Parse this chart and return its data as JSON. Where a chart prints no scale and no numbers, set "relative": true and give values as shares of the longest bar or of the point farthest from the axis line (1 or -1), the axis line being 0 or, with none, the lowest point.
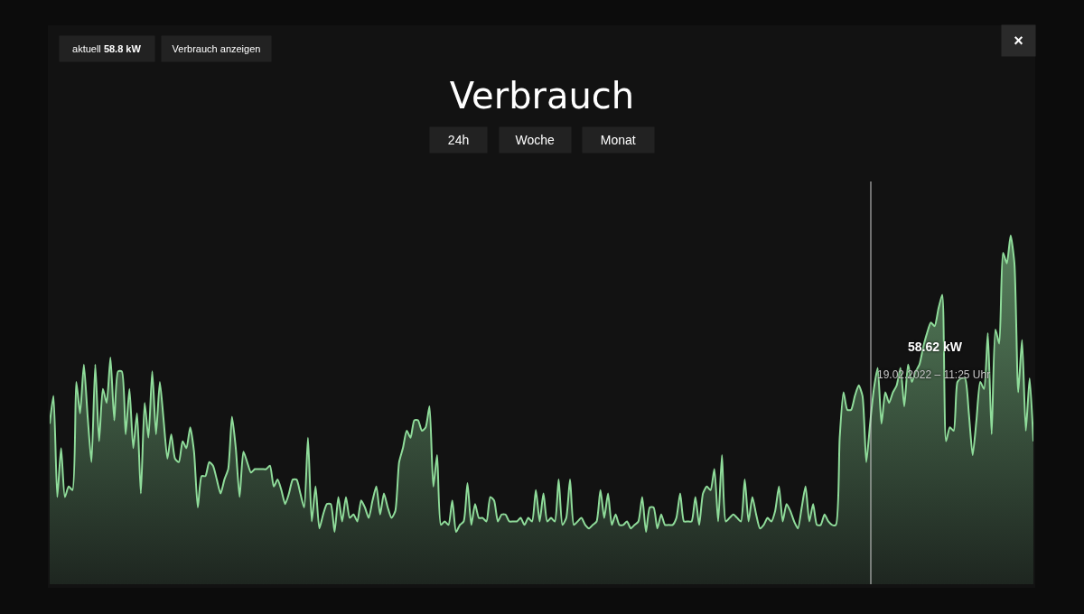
{
  "chart_data": {
    "type": "area",
    "title": "Verbrauch",
    "relative": true,
    "color": "#8fdc9a",
    "categories": [
      null,
      null,
      null,
      null,
      null,
      null,
      null,
      null,
      null,
      null,
      null,
      null,
      null,
      null,
      null,
      null,
      null,
      null,
      null,
      null,
      null,
      null,
      null,
      null,
      null,
      null,
      null,
      null,
      null,
      null,
      null,
      null,
      null,
      null,
      null,
      null,
      null,
      null,
      null,
      null,
      null,
      null,
      null,
      null,
      null,
      null,
      null,
      null,
      null,
      null,
      null,
      null,
      null,
      null,
      null,
      null,
      null,
      null,
      null,
      null,
      null,
      null,
      null,
      null,
      null,
      null,
      null,
      null,
      null,
      null,
      null,
      null,
      null,
      null,
      null,
      null,
      null,
      null,
      null,
      null,
      null,
      null,
      null,
      null,
      null,
      null,
      null,
      null,
      null,
      null,
      null,
      null,
      null,
      null,
      null,
      null,
      null,
      null,
      null,
      null,
      null,
      null,
      null,
      null,
      null,
      null,
      null,
      null,
      null,
      null,
      null,
      null,
      null,
      null,
      null,
      null,
      null,
      null,
      null,
      null,
      null,
      null,
      null,
      null,
      null,
      null,
      null,
      null,
      null,
      null,
      null,
      null,
      null,
      null,
      null,
      null,
      null,
      null,
      null,
      null,
      null,
      null,
      null,
      null,
      null,
      null,
      null,
      null,
      null,
      null,
      null,
      null,
      null,
      null,
      null,
      null,
      null,
      null,
      null,
      null,
      null,
      null,
      null,
      null,
      null,
      null,
      null,
      null,
      null,
      null,
      null,
      null,
      null,
      null,
      null,
      null,
      null,
      null,
      null,
      null,
      null,
      null,
      null,
      null,
      null,
      null,
      null,
      null,
      null,
      null,
      null,
      null,
      null,
      null,
      null,
      null,
      null,
      null,
      null,
      null,
      null,
      null,
      null,
      null,
      null,
      null,
      null,
      null,
      null,
      null,
      null,
      null,
      null,
      null,
      null,
      null,
      null,
      null,
      null,
      null,
      null,
      null,
      null,
      null,
      null,
      null,
      null,
      null,
      null,
      null,
      null,
      null,
      null,
      null,
      null,
      null,
      null,
      null,
      null,
      null,
      null,
      null,
      null,
      null,
      null,
      null,
      null,
      null,
      null,
      null,
      null,
      null,
      null,
      null,
      null,
      null,
      null,
      null,
      null,
      null
    ],
    "values": [
      0.46,
      0.54,
      0.25,
      0.39,
      0.25,
      0.28,
      0.27,
      0.58,
      0.49,
      0.63,
      0.48,
      0.35,
      0.63,
      0.41,
      0.56,
      0.52,
      0.65,
      0.47,
      0.61,
      0.61,
      0.43,
      0.56,
      0.39,
      0.49,
      0.26,
      0.52,
      0.42,
      0.61,
      0.43,
      0.58,
      0.47,
      0.36,
      0.43,
      0.36,
      0.35,
      0.41,
      0.39,
      0.45,
      0.38,
      0.22,
      0.31,
      0.31,
      0.35,
      0.34,
      0.3,
      0.26,
      0.3,
      0.33,
      0.48,
      0.39,
      0.25,
      0.38,
      0.35,
      0.32,
      0.33,
      0.33,
      0.33,
      0.33,
      0.34,
      0.28,
      0.3,
      0.27,
      0.23,
      0.26,
      0.3,
      0.3,
      0.26,
      0.22,
      0.42,
      0.18,
      0.28,
      0.16,
      0.2,
      0.23,
      0.23,
      0.15,
      0.25,
      0.18,
      0.25,
      0.19,
      0.2,
      0.18,
      0.24,
      0.22,
      0.19,
      0.24,
      0.28,
      0.2,
      0.26,
      0.22,
      0.19,
      0.21,
      0.35,
      0.39,
      0.44,
      0.42,
      0.47,
      0.47,
      0.44,
      0.45,
      0.51,
      0.28,
      0.37,
      0.17,
      0.18,
      0.17,
      0.24,
      0.15,
      0.17,
      0.18,
      0.29,
      0.17,
      0.23,
      0.19,
      0.19,
      0.18,
      0.25,
      0.24,
      0.18,
      0.2,
      0.2,
      0.18,
      0.18,
      0.18,
      0.19,
      0.17,
      0.19,
      0.18,
      0.27,
      0.18,
      0.26,
      0.18,
      0.19,
      0.18,
      0.3,
      0.17,
      0.19,
      0.3,
      0.17,
      0.18,
      0.19,
      0.17,
      0.16,
      0.17,
      0.18,
      0.27,
      0.19,
      0.26,
      0.17,
      0.2,
      0.17,
      0.17,
      0.18,
      0.16,
      0.17,
      0.18,
      0.25,
      0.15,
      0.22,
      0.22,
      0.16,
      0.2,
      0.17,
      0.17,
      0.17,
      0.19,
      0.26,
      0.18,
      0.18,
      0.18,
      0.25,
      0.17,
      0.26,
      0.28,
      0.27,
      0.33,
      0.18,
      0.37,
      0.18,
      0.19,
      0.2,
      0.19,
      0.18,
      0.3,
      0.18,
      0.25,
      0.2,
      0.16,
      0.17,
      0.19,
      0.18,
      0.21,
      0.28,
      0.18,
      0.23,
      0.21,
      0.18,
      0.16,
      0.22,
      0.28,
      0.18,
      0.23,
      0.17,
      0.17,
      0.2,
      0.18,
      0.17,
      0.17,
      0.42,
      0.55,
      0.5,
      0.5,
      0.54,
      0.57,
      0.54,
      0.35,
      0.46,
      0.56,
      0.62,
      0.46,
      0.55,
      0.52,
      0.55,
      0.57,
      0.62,
      0.51,
      0.63,
      0.58,
      0.61,
      0.63,
      0.68,
      0.72,
      0.75,
      0.74,
      0.79,
      0.83,
      0.41,
      0.45,
      0.44,
      0.58,
      0.59,
      0.59,
      0.49,
      0.37,
      0.47,
      0.58,
      0.56,
      0.72,
      0.43,
      0.73,
      0.69,
      0.95,
      0.92,
      1.0,
      0.92,
      0.55,
      0.7,
      0.44,
      0.59,
      0.41
    ],
    "annotations": [
      "aktuell 58.8 kW",
      "Verbrauch anzeigen",
      "24h",
      "Woche",
      "Monat",
      "×",
      "58.62 kW",
      "19.02.2022 – 11:25 Uhr"
    ]
  }
}
